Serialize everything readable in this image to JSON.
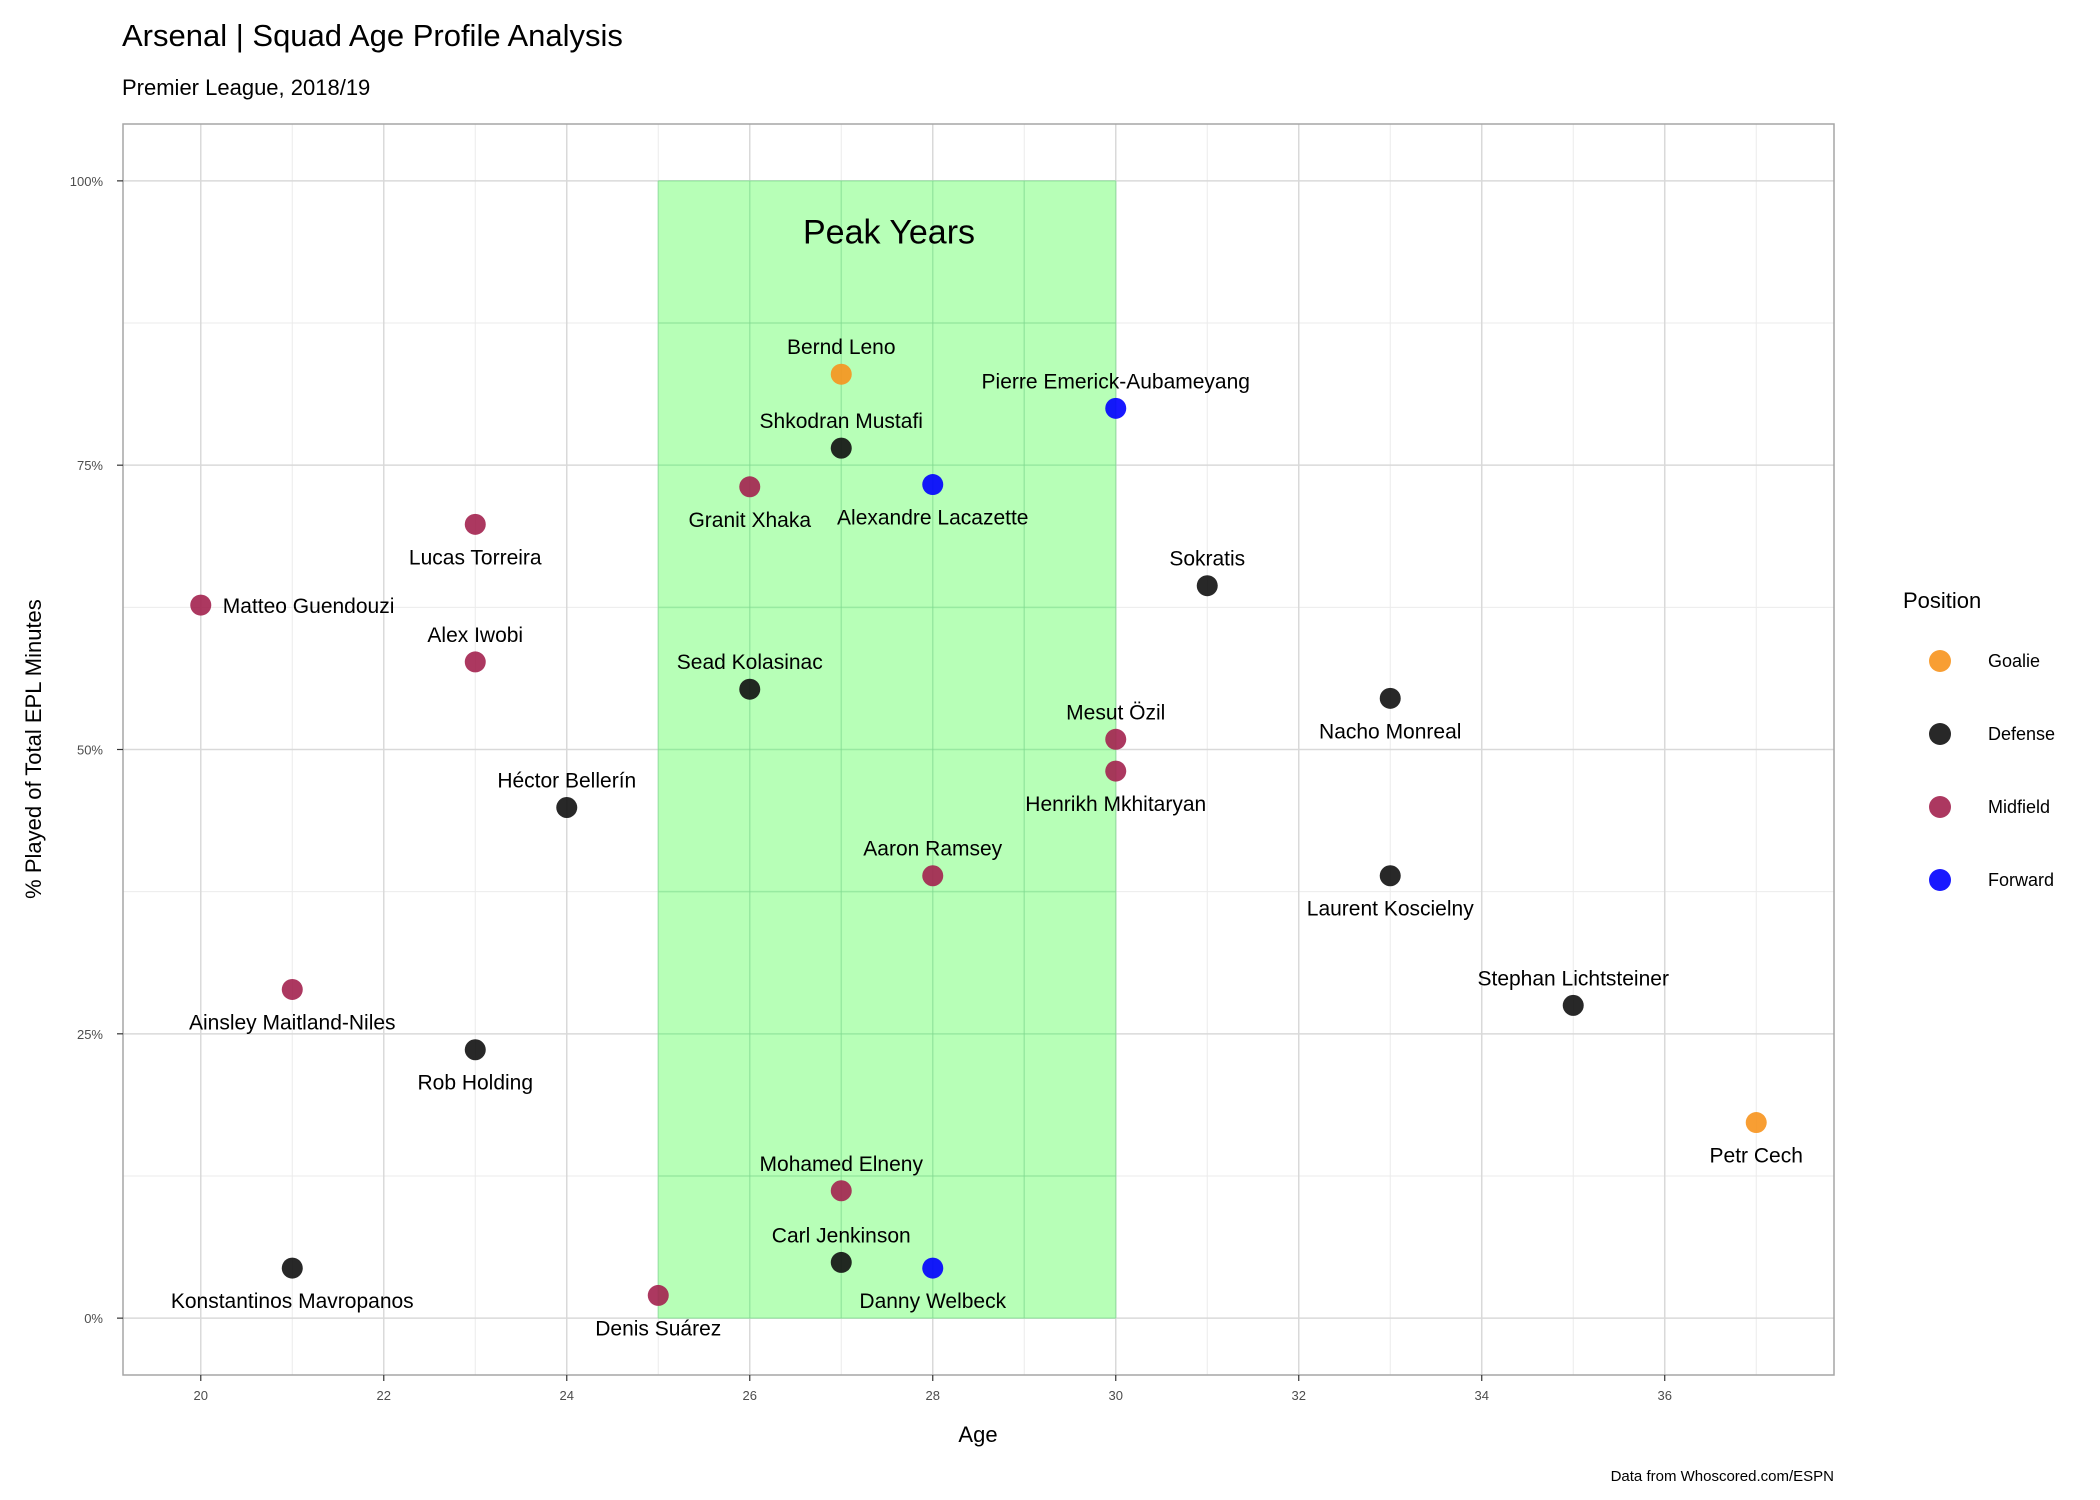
{
  "chart_data": {
    "type": "scatter",
    "title": "Arsenal | Squad Age Profile Analysis",
    "subtitle": "Premier League, 2018/19",
    "xlabel": "Age",
    "ylabel": "% Played of Total EPL Minutes",
    "caption": "Data from Whoscored.com/ESPN",
    "xlim": [
      19.15,
      37.85
    ],
    "ylim": [
      -0.05,
      1.05
    ],
    "x_ticks": [
      20,
      22,
      24,
      26,
      28,
      30,
      32,
      34,
      36
    ],
    "y_ticks": [
      0,
      0.25,
      0.5,
      0.75,
      1.0
    ],
    "y_tick_labels": [
      "0%",
      "25%",
      "50%",
      "75%",
      "100%"
    ],
    "grid": true,
    "peak_region": {
      "label": "Peak Years",
      "x_from": 25,
      "x_to": 30,
      "y_from": 0,
      "y_to": 1.0,
      "color": "#b3ffb3"
    },
    "legend": {
      "title": "Position",
      "placement": "right",
      "entries": [
        {
          "name": "Goalie",
          "color": "#f7941d"
        },
        {
          "name": "Defense",
          "color": "#111111"
        },
        {
          "name": "Midfield",
          "color": "#a3224f"
        },
        {
          "name": "Forward",
          "color": "#0000ff"
        }
      ]
    },
    "points": [
      {
        "name": "Bernd Leno",
        "age": 27,
        "pct": 0.83,
        "position": "Goalie",
        "label_pos": "above"
      },
      {
        "name": "Petr Cech",
        "age": 37,
        "pct": 0.172,
        "position": "Goalie",
        "label_pos": "below"
      },
      {
        "name": "Shkodran Mustafi",
        "age": 27,
        "pct": 0.765,
        "position": "Defense",
        "label_pos": "above"
      },
      {
        "name": "Sokratis",
        "age": 31,
        "pct": 0.644,
        "position": "Defense",
        "label_pos": "above"
      },
      {
        "name": "Sead Kolasinac",
        "age": 26,
        "pct": 0.553,
        "position": "Defense",
        "label_pos": "above"
      },
      {
        "name": "Nacho Monreal",
        "age": 33,
        "pct": 0.545,
        "position": "Defense",
        "label_pos": "below"
      },
      {
        "name": "Héctor Bellerín",
        "age": 24,
        "pct": 0.449,
        "position": "Defense",
        "label_pos": "above"
      },
      {
        "name": "Laurent Koscielny",
        "age": 33,
        "pct": 0.389,
        "position": "Defense",
        "label_pos": "below"
      },
      {
        "name": "Stephan Lichtsteiner",
        "age": 35,
        "pct": 0.275,
        "position": "Defense",
        "label_pos": "above"
      },
      {
        "name": "Rob Holding",
        "age": 23,
        "pct": 0.236,
        "position": "Defense",
        "label_pos": "below"
      },
      {
        "name": "Carl Jenkinson",
        "age": 27,
        "pct": 0.049,
        "position": "Defense",
        "label_pos": "above"
      },
      {
        "name": "Konstantinos Mavropanos",
        "age": 21,
        "pct": 0.044,
        "position": "Defense",
        "label_pos": "below"
      },
      {
        "name": "Granit Xhaka",
        "age": 26,
        "pct": 0.731,
        "position": "Midfield",
        "label_pos": "below"
      },
      {
        "name": "Lucas Torreira",
        "age": 23,
        "pct": 0.698,
        "position": "Midfield",
        "label_pos": "below"
      },
      {
        "name": "Matteo Guendouzi",
        "age": 20,
        "pct": 0.627,
        "position": "Midfield",
        "label_pos": "right"
      },
      {
        "name": "Alex Iwobi",
        "age": 23,
        "pct": 0.577,
        "position": "Midfield",
        "label_pos": "above"
      },
      {
        "name": "Mesut Özil",
        "age": 30,
        "pct": 0.509,
        "position": "Midfield",
        "label_pos": "above"
      },
      {
        "name": "Henrikh Mkhitaryan",
        "age": 30,
        "pct": 0.481,
        "position": "Midfield",
        "label_pos": "below"
      },
      {
        "name": "Aaron Ramsey",
        "age": 28,
        "pct": 0.389,
        "position": "Midfield",
        "label_pos": "above"
      },
      {
        "name": "Ainsley Maitland-Niles",
        "age": 21,
        "pct": 0.289,
        "position": "Midfield",
        "label_pos": "below"
      },
      {
        "name": "Mohamed Elneny",
        "age": 27,
        "pct": 0.112,
        "position": "Midfield",
        "label_pos": "above"
      },
      {
        "name": "Denis Suárez",
        "age": 25,
        "pct": 0.02,
        "position": "Midfield",
        "label_pos": "below"
      },
      {
        "name": "Pierre Emerick-Aubameyang",
        "age": 30,
        "pct": 0.8,
        "position": "Forward",
        "label_pos": "above"
      },
      {
        "name": "Alexandre Lacazette",
        "age": 28,
        "pct": 0.733,
        "position": "Forward",
        "label_pos": "below"
      },
      {
        "name": "Danny Welbeck",
        "age": 28,
        "pct": 0.044,
        "position": "Forward",
        "label_pos": "below"
      }
    ]
  }
}
